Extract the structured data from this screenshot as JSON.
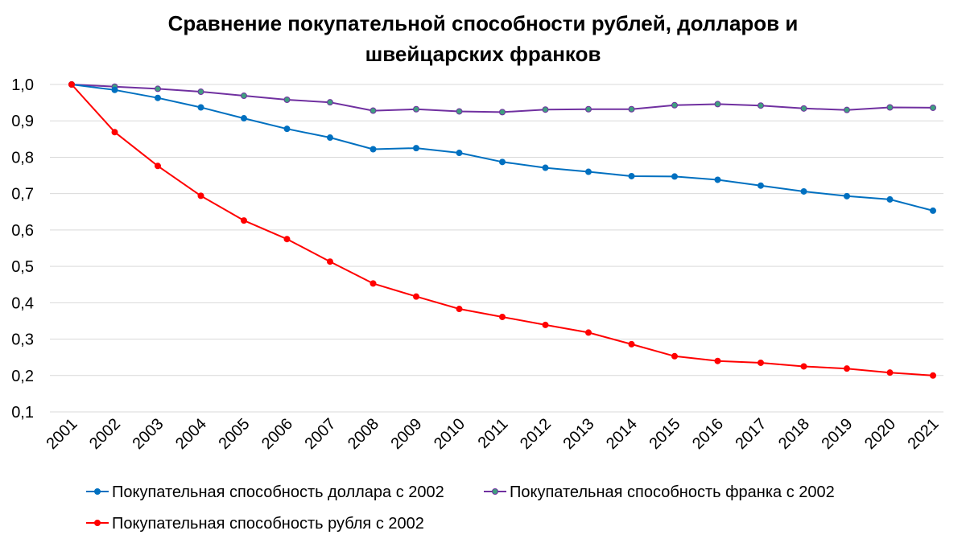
{
  "chart_data": {
    "type": "line",
    "title_lines": [
      "Сравнение покупательной способности рублей, долларов и",
      "швейцарских франков"
    ],
    "xlabel": "",
    "ylabel": "",
    "ylim": [
      0.1,
      1.0
    ],
    "y_ticks": [
      "0,1",
      "0,2",
      "0,3",
      "0,4",
      "0,5",
      "0,6",
      "0,7",
      "0,8",
      "0,9",
      "1,0"
    ],
    "y_tick_values": [
      0.1,
      0.2,
      0.3,
      0.4,
      0.5,
      0.6,
      0.7,
      0.8,
      0.9,
      1.0
    ],
    "grid": true,
    "legend_position": "bottom",
    "categories": [
      "2001",
      "2002",
      "2003",
      "2004",
      "2005",
      "2006",
      "2007",
      "2008",
      "2009",
      "2010",
      "2011",
      "2012",
      "2013",
      "2014",
      "2015",
      "2016",
      "2017",
      "2018",
      "2019",
      "2020",
      "2021"
    ],
    "series": [
      {
        "name": "Покупательная способность доллара с 2002",
        "color": "#0070C0",
        "marker_color": "#0070C0",
        "values": [
          1.0,
          0.985,
          0.963,
          0.937,
          0.907,
          0.878,
          0.854,
          0.822,
          0.825,
          0.812,
          0.787,
          0.771,
          0.76,
          0.748,
          0.747,
          0.738,
          0.722,
          0.706,
          0.693,
          0.684,
          0.653
        ]
      },
      {
        "name": "Покупательная способность франка с 2002",
        "color": "#7030A0",
        "marker_color": "#3F9F7F",
        "values": [
          1.0,
          0.994,
          0.988,
          0.98,
          0.969,
          0.958,
          0.951,
          0.928,
          0.932,
          0.926,
          0.924,
          0.931,
          0.932,
          0.932,
          0.943,
          0.946,
          0.942,
          0.934,
          0.93,
          0.937,
          0.936
        ]
      },
      {
        "name": "Покупательная способность рубля с 2002",
        "color": "#FF0000",
        "marker_color": "#FF0000",
        "values": [
          1.0,
          0.869,
          0.776,
          0.694,
          0.626,
          0.575,
          0.513,
          0.453,
          0.417,
          0.383,
          0.361,
          0.339,
          0.318,
          0.286,
          0.253,
          0.24,
          0.235,
          0.225,
          0.219,
          0.208,
          0.2
        ]
      }
    ]
  }
}
